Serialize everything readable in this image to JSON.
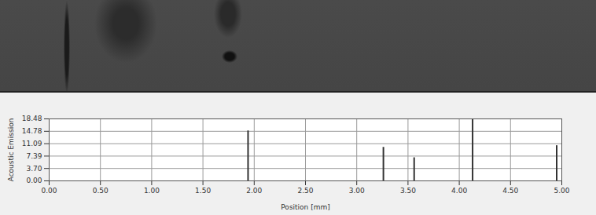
{
  "chart_data": {
    "type": "bar",
    "x": [
      1.94,
      3.26,
      3.56,
      4.13,
      4.95
    ],
    "values": [
      14.9,
      10.0,
      6.9,
      18.4,
      10.5
    ],
    "color": "#333333",
    "xlabel": "Position [mm]",
    "ylabel": "Acoustic Emission",
    "xlim": [
      0,
      5
    ],
    "xticks": [
      {
        "value": 0,
        "label": "0.00"
      },
      {
        "value": 0.5,
        "label": "0.50"
      },
      {
        "value": 1,
        "label": "1.00"
      },
      {
        "value": 1.5,
        "label": "1.50"
      },
      {
        "value": 2,
        "label": "2.00"
      },
      {
        "value": 2.5,
        "label": "2.50"
      },
      {
        "value": 3,
        "label": "3.00"
      },
      {
        "value": 3.5,
        "label": "3.50"
      },
      {
        "value": 4,
        "label": "4.00"
      },
      {
        "value": 4.5,
        "label": "4.50"
      },
      {
        "value": 5,
        "label": "5.00"
      }
    ],
    "ylim": [
      0,
      18.48
    ],
    "yticks": [
      {
        "value": 0,
        "label": "0.00"
      },
      {
        "value": 3.7,
        "label": "3.70"
      },
      {
        "value": 7.39,
        "label": "7.39"
      },
      {
        "value": 11.09,
        "label": "11.09"
      },
      {
        "value": 14.78,
        "label": "14.78"
      },
      {
        "value": 18.48,
        "label": "18.48"
      }
    ],
    "grid": true
  }
}
